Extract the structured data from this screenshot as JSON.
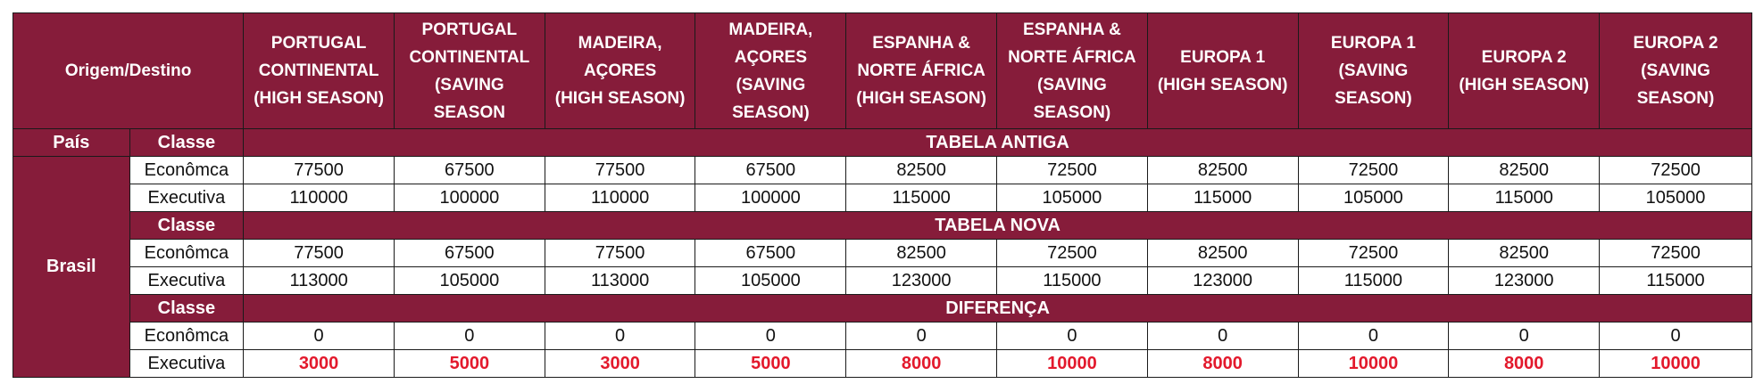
{
  "header": {
    "origin_label": "Origem/Destino",
    "pais_label": "País",
    "classe_label": "Classe",
    "columns": [
      [
        "PORTUGAL",
        "CONTINENTAL",
        "(HIGH SEASON)"
      ],
      [
        "PORTUGAL",
        "CONTINENTAL",
        "(SAVING",
        "SEASON"
      ],
      [
        "MADEIRA,",
        "AÇORES",
        "(HIGH SEASON)"
      ],
      [
        "MADEIRA,",
        "AÇORES",
        "(SAVING",
        "SEASON)"
      ],
      [
        "ESPANHA &",
        "NORTE ÁFRICA",
        "(HIGH SEASON)"
      ],
      [
        "ESPANHA &",
        "NORTE ÁFRICA",
        "(SAVING",
        "SEASON)"
      ],
      [
        "EUROPA 1",
        "(HIGH SEASON)"
      ],
      [
        "EUROPA 1",
        "(SAVING",
        "SEASON)"
      ],
      [
        "EUROPA 2",
        "(HIGH SEASON)"
      ],
      [
        "EUROPA 2",
        "(SAVING",
        "SEASON)"
      ]
    ]
  },
  "country": "Brasil",
  "sections": [
    {
      "title": "TABELA ANTIGA",
      "classe_label": "Classe",
      "rows": [
        {
          "classe": "Econômca",
          "values": [
            "77500",
            "67500",
            "77500",
            "67500",
            "82500",
            "72500",
            "82500",
            "72500",
            "82500",
            "72500"
          ]
        },
        {
          "classe": "Executiva",
          "values": [
            "110000",
            "100000",
            "110000",
            "100000",
            "115000",
            "105000",
            "115000",
            "105000",
            "115000",
            "105000"
          ]
        }
      ]
    },
    {
      "title": "TABELA NOVA",
      "classe_label": "Classe",
      "rows": [
        {
          "classe": "Econômca",
          "values": [
            "77500",
            "67500",
            "77500",
            "67500",
            "82500",
            "72500",
            "82500",
            "72500",
            "82500",
            "72500"
          ]
        },
        {
          "classe": "Executiva",
          "values": [
            "113000",
            "105000",
            "113000",
            "105000",
            "123000",
            "115000",
            "123000",
            "115000",
            "123000",
            "115000"
          ]
        }
      ]
    },
    {
      "title": "DIFERENÇA",
      "classe_label": "Classe",
      "rows": [
        {
          "classe": "Econômca",
          "values": [
            "0",
            "0",
            "0",
            "0",
            "0",
            "0",
            "0",
            "0",
            "0",
            "0"
          ],
          "highlight": false
        },
        {
          "classe": "Executiva",
          "values": [
            "3000",
            "5000",
            "3000",
            "5000",
            "8000",
            "10000",
            "8000",
            "10000",
            "8000",
            "10000"
          ],
          "highlight": true
        }
      ]
    }
  ],
  "colors": {
    "header_bg": "#861c3a",
    "header_text": "#ffffff",
    "diff_text": "#e3192c",
    "border": "#1a1a1a"
  }
}
